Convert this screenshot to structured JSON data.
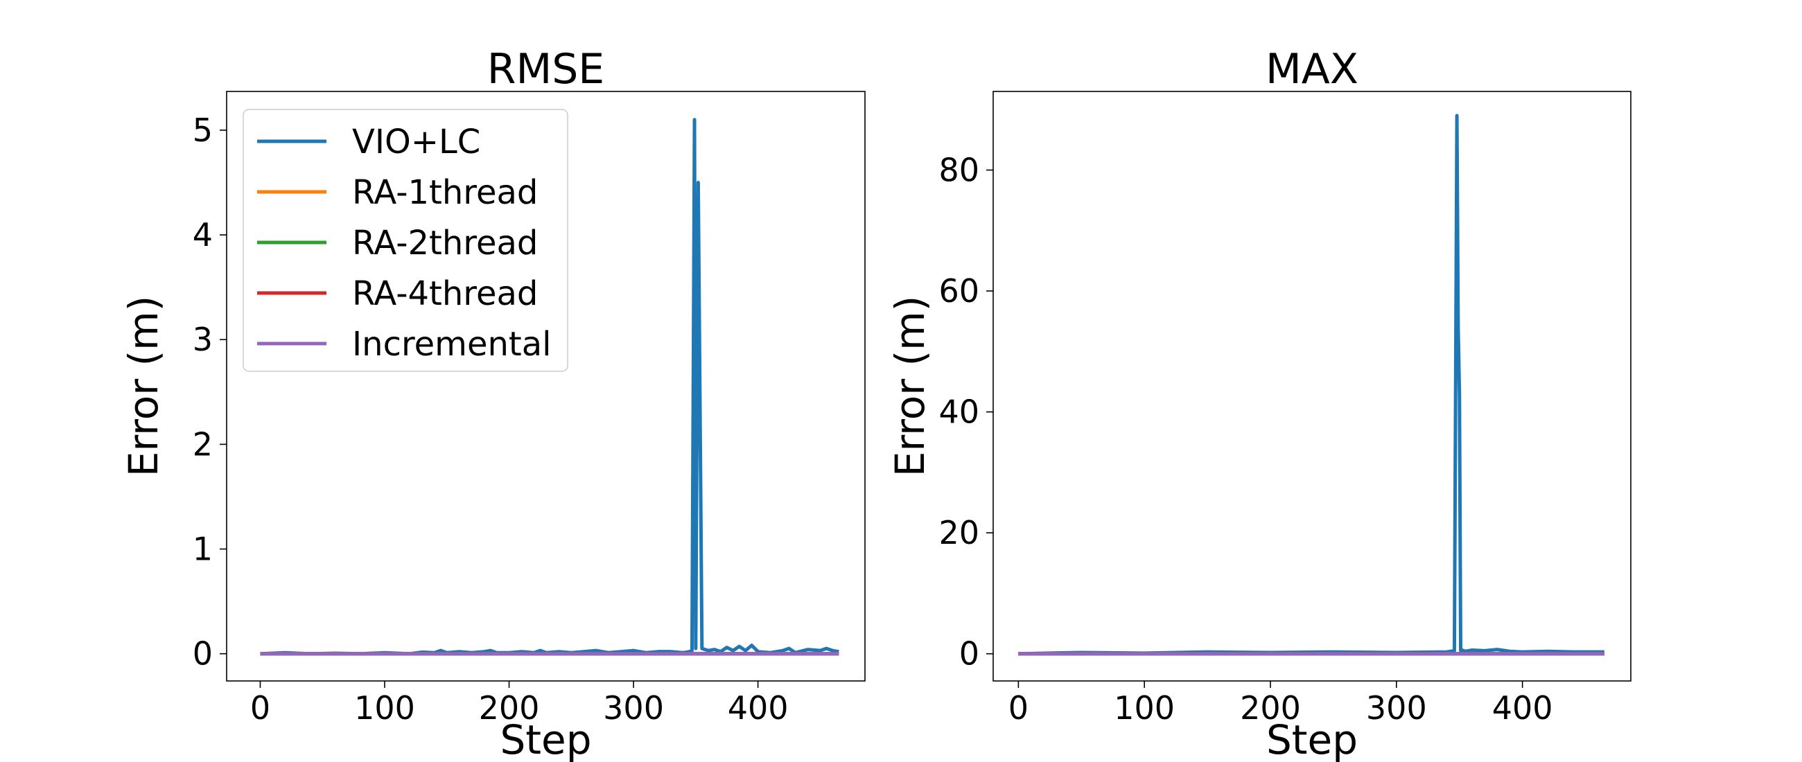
{
  "chart_data": [
    {
      "type": "line",
      "title": "RMSE",
      "xlabel": "Step",
      "ylabel": "Error (m)",
      "xlim": [
        -27,
        486
      ],
      "ylim": [
        -0.26,
        5.37
      ],
      "xticks": [
        0,
        100,
        200,
        300,
        400
      ],
      "yticks": [
        0,
        1,
        2,
        3,
        4,
        5
      ],
      "grid": false,
      "legend_position": "upper left",
      "legend": [
        "VIO+LC",
        "RA-1thread",
        "RA-2thread",
        "RA-4thread",
        "Incremental"
      ],
      "series": [
        {
          "name": "VIO+LC",
          "color": "#1f77b4",
          "x": [
            0,
            20,
            40,
            60,
            80,
            100,
            120,
            130,
            140,
            145,
            150,
            160,
            170,
            180,
            185,
            190,
            200,
            210,
            220,
            225,
            230,
            240,
            250,
            260,
            270,
            280,
            290,
            300,
            310,
            320,
            330,
            340,
            345,
            347,
            349,
            350,
            352,
            355,
            360,
            365,
            370,
            375,
            380,
            385,
            390,
            395,
            400,
            410,
            420,
            425,
            430,
            440,
            450,
            455,
            460,
            465
          ],
          "y": [
            0,
            0.01,
            0,
            0.005,
            0,
            0.01,
            0,
            0.015,
            0.01,
            0.03,
            0.01,
            0.02,
            0.01,
            0.02,
            0.03,
            0.01,
            0.01,
            0.02,
            0.01,
            0.03,
            0.01,
            0.02,
            0.01,
            0.02,
            0.03,
            0.01,
            0.02,
            0.03,
            0.01,
            0.02,
            0.02,
            0.01,
            0.02,
            0.03,
            5.1,
            0.05,
            4.5,
            0.05,
            0.03,
            0.04,
            0.02,
            0.06,
            0.03,
            0.07,
            0.03,
            0.08,
            0.02,
            0.01,
            0.03,
            0.05,
            0.01,
            0.04,
            0.03,
            0.05,
            0.03,
            0.02
          ]
        },
        {
          "name": "RA-1thread",
          "color": "#ff7f0e",
          "x": [
            0,
            465
          ],
          "y": [
            0,
            0
          ]
        },
        {
          "name": "RA-2thread",
          "color": "#2ca02c",
          "x": [
            0,
            465
          ],
          "y": [
            0,
            0
          ]
        },
        {
          "name": "RA-4thread",
          "color": "#d62728",
          "x": [
            0,
            465
          ],
          "y": [
            0,
            0
          ]
        },
        {
          "name": "Incremental",
          "color": "#9467bd",
          "x": [
            0,
            465
          ],
          "y": [
            0,
            0
          ]
        }
      ]
    },
    {
      "type": "line",
      "title": "MAX",
      "xlabel": "Step",
      "ylabel": "Error (m)",
      "xlim": [
        -20,
        486
      ],
      "ylim": [
        -4.5,
        93
      ],
      "xticks": [
        0,
        100,
        200,
        300,
        400
      ],
      "yticks": [
        0,
        20,
        40,
        60,
        80
      ],
      "grid": false,
      "series": [
        {
          "name": "VIO+LC",
          "color": "#1f77b4",
          "x": [
            0,
            50,
            100,
            150,
            200,
            250,
            300,
            340,
            346,
            348,
            349,
            350,
            351,
            352,
            355,
            360,
            370,
            380,
            390,
            400,
            420,
            440,
            465
          ],
          "y": [
            0,
            0.2,
            0.1,
            0.3,
            0.2,
            0.3,
            0.2,
            0.3,
            0.5,
            89,
            54,
            43,
            0.5,
            0.6,
            0.4,
            0.6,
            0.5,
            0.7,
            0.4,
            0.3,
            0.4,
            0.3,
            0.3
          ]
        },
        {
          "name": "RA-1thread",
          "color": "#ff7f0e",
          "x": [
            0,
            465
          ],
          "y": [
            0,
            0
          ]
        },
        {
          "name": "RA-2thread",
          "color": "#2ca02c",
          "x": [
            0,
            465
          ],
          "y": [
            0,
            0
          ]
        },
        {
          "name": "RA-4thread",
          "color": "#d62728",
          "x": [
            0,
            465
          ],
          "y": [
            0,
            0
          ]
        },
        {
          "name": "Incremental",
          "color": "#9467bd",
          "x": [
            0,
            465
          ],
          "y": [
            0,
            0
          ]
        }
      ]
    }
  ]
}
